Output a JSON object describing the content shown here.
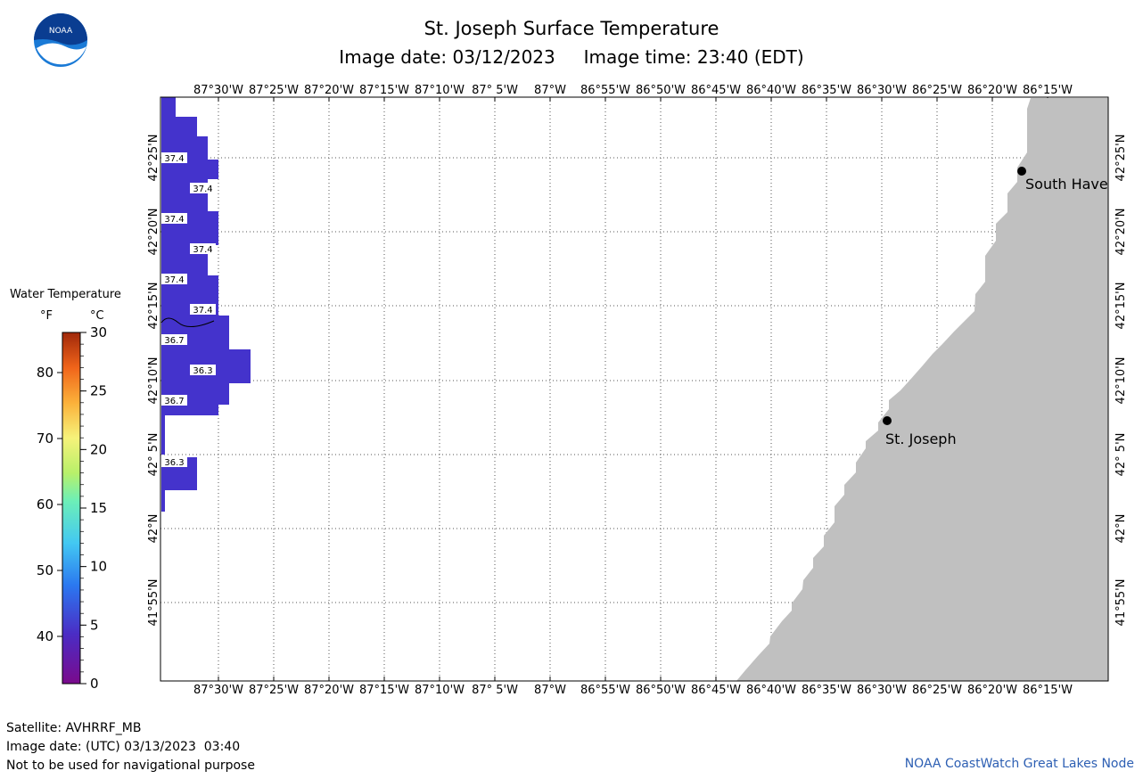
{
  "header": {
    "title": "St. Joseph Surface Temperature",
    "image_date_label": "Image date: 03/12/2023",
    "image_time_label": "Image time: 23:40 (EDT)"
  },
  "logo": {
    "text": "NOAA",
    "icon": "noaa-logo-icon"
  },
  "legend": {
    "title": "Water Temperature",
    "unit_f": "°F",
    "unit_c": "°C",
    "f_ticks": [
      "80",
      "70",
      "60",
      "50",
      "40"
    ],
    "c_ticks": [
      "30",
      "25",
      "20",
      "15",
      "10",
      "5",
      "0"
    ]
  },
  "map": {
    "lon_labels": [
      "87°30'W",
      "87°25'W",
      "87°20'W",
      "87°15'W",
      "87°10'W",
      "87° 5'W",
      "87°W",
      "86°55'W",
      "86°50'W",
      "86°45'W",
      "86°40'W",
      "86°35'W",
      "86°30'W",
      "86°25'W",
      "86°20'W",
      "86°15'W"
    ],
    "lat_labels": [
      "42°25'N",
      "42°20'N",
      "42°15'N",
      "42°10'N",
      "42° 5'N",
      "42°N",
      "41°55'N"
    ],
    "temperature_labels": [
      {
        "value": "37.4"
      },
      {
        "value": "37.4"
      },
      {
        "value": "37.4"
      },
      {
        "value": "37.4"
      },
      {
        "value": "37.4"
      },
      {
        "value": "37.4"
      },
      {
        "value": "36.7"
      },
      {
        "value": "36.3"
      },
      {
        "value": "36.7"
      },
      {
        "value": "36.3"
      }
    ],
    "cities": [
      {
        "name": "South Have"
      },
      {
        "name": "St. Joseph"
      }
    ],
    "colors": {
      "water": "#4433cc",
      "water_dark": "#3d2fc2",
      "land": "#c0c0c0",
      "grid": "#555555"
    }
  },
  "footer": {
    "satellite": "Satellite: AVHRRF_MB",
    "utc_date": "Image date: (UTC) 03/13/2023  03:40",
    "disclaimer": "Not to be used for navigational purpose",
    "credit": "NOAA CoastWatch Great Lakes Node"
  }
}
